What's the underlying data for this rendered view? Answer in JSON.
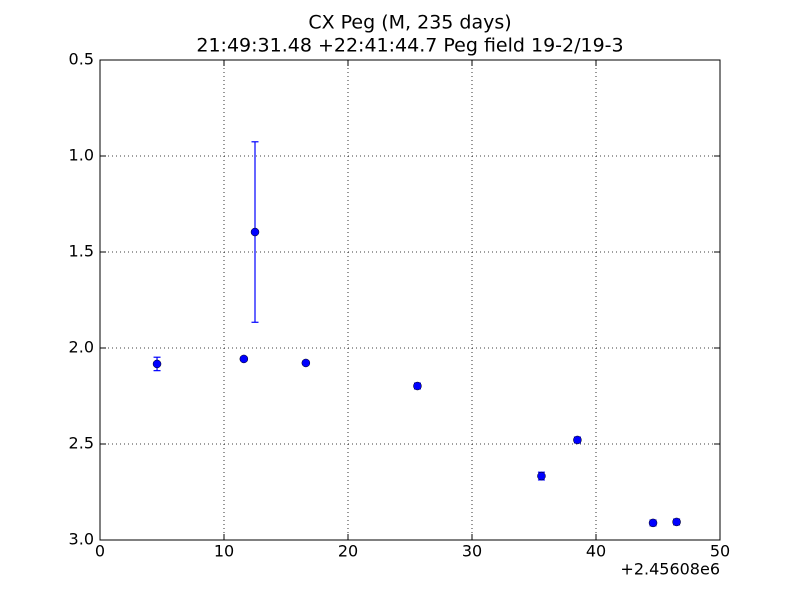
{
  "chart_data": {
    "type": "scatter",
    "title": "CX Peg (M, 235 days)",
    "subtitle": "21:49:31.48 +22:41:44.7 Peg field 19-2/19-3",
    "x_offset_label": "+2.45608e6",
    "xlim": [
      0,
      50
    ],
    "xticks": [
      0,
      10,
      20,
      30,
      40,
      50
    ],
    "ylim": [
      0.5,
      3.0
    ],
    "y_inverted": true,
    "yticks": [
      0.5,
      {
        "value": 1.0,
        "label": "1.0"
      },
      1.5,
      {
        "value": 2.0,
        "label": "2.0"
      },
      2.5,
      {
        "value": 3.0,
        "label": "3.0"
      }
    ],
    "grid": true,
    "color": "#0000ff",
    "x": [
      4.6,
      11.6,
      12.5,
      16.6,
      25.6,
      35.6,
      38.5,
      44.6,
      46.5
    ],
    "values": [
      2.083,
      2.057,
      1.396,
      2.078,
      2.198,
      2.667,
      2.479,
      2.911,
      2.906
    ],
    "errors": [
      0.035,
      0.01,
      0.47,
      0.01,
      0.015,
      0.02,
      0.015,
      0.015,
      0.015
    ]
  }
}
